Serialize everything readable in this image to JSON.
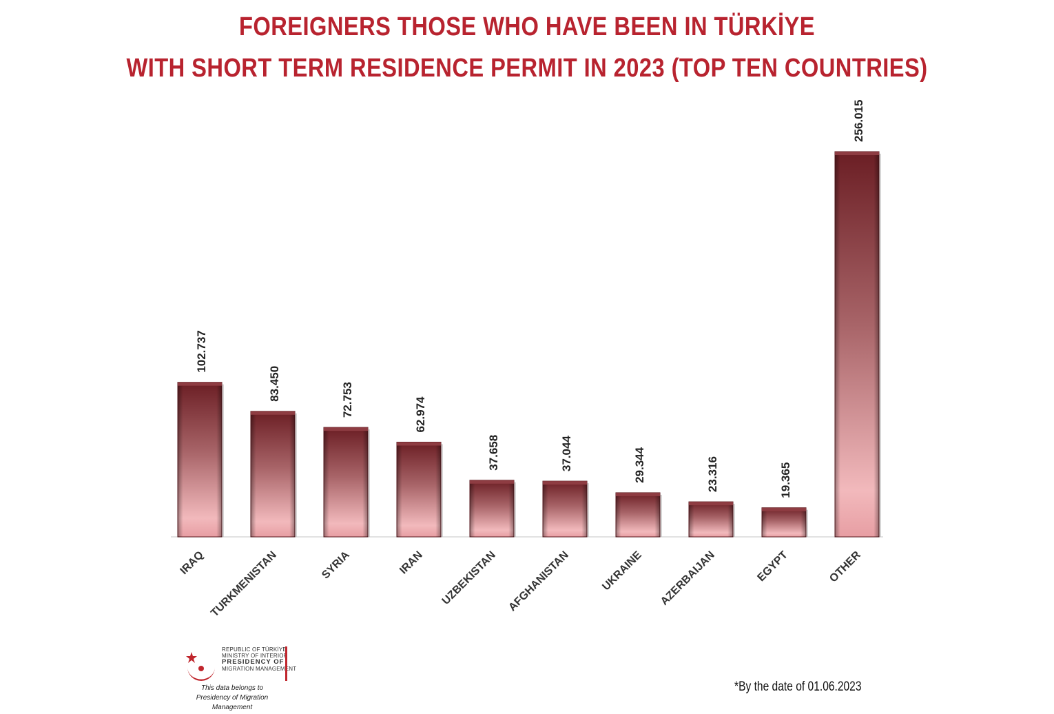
{
  "title": {
    "line1": "FOREIGNERS THOSE WHO HAVE BEEN IN TÜRKİYE",
    "line2": "WITH SHORT TERM RESIDENCE PERMIT IN 2023 (TOP TEN COUNTRIES)"
  },
  "chart_data": {
    "type": "bar",
    "categories": [
      "IRAQ",
      "TURKMENISTAN",
      "SYRIA",
      "IRAN",
      "UZBEKISTAN",
      "AFGHANISTAN",
      "UKRAINE",
      "AZERBAIJAN",
      "EGYPT",
      "OTHER"
    ],
    "values": [
      102737,
      83450,
      72753,
      62974,
      37658,
      37044,
      29344,
      23316,
      19365,
      256015
    ],
    "value_labels": [
      "102.737",
      "83.450",
      "72.753",
      "62.974",
      "37.658",
      "37.044",
      "29.344",
      "23.316",
      "19.365",
      "256.015"
    ],
    "ylim": [
      0,
      256015
    ],
    "grid": false,
    "legend": "none",
    "colors": {
      "bar_top": "#6b1e24",
      "bar_mid": "#a86468",
      "bar_bottom": "#f2b9bc",
      "title": "#b8232f"
    }
  },
  "logo": {
    "line1": "REPUBLIC OF TÜRKİYE",
    "line2": "MINISTRY OF INTERIOR",
    "line3": "PRESIDENCY OF",
    "line4": "MIGRATION MANAGEMENT",
    "emblem_icon": "crescent-star-icon"
  },
  "ownership_note": {
    "line1": "This data belongs to",
    "line2": "Presidency of Migration Management"
  },
  "date_note": "*By the date of 01.06.2023"
}
